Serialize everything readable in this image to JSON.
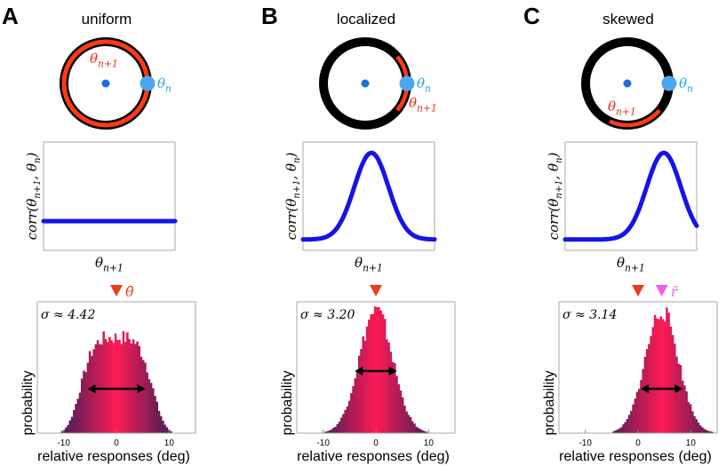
{
  "panels": [
    {
      "letter": "A",
      "title": "uniform",
      "label_current": "θ",
      "label_current_sub": "n",
      "label_next": "θ",
      "label_next_sub": "n+1",
      "ring_arc": "full",
      "corr_shape": "flat",
      "ylabel": "corr(θ",
      "ylabel_sub1": "n+1",
      "ylabel_mid": ", θ",
      "ylabel_sub2": "n",
      "ylabel_end": ")",
      "xlabel": "θ",
      "xlabel_sub": "n+1",
      "sigma_text": "σ ≈ 4.42",
      "markers": [
        {
          "kind": "triangle",
          "color": "#f03a1e",
          "x": 0
        },
        {
          "kind": "label",
          "text": "θ̄",
          "color": "#f03a1e"
        }
      ],
      "hist_center": 0,
      "hist_sigma": 4.42,
      "hist_shape": "flat",
      "arrow_range": [
        -5.5,
        5.5
      ],
      "x_ticks": [
        "-10",
        "0",
        "10"
      ],
      "x_tick_values": [
        -10,
        0,
        10
      ],
      "hist_ylabel": "probability",
      "hist_xlabel": "relative responses (deg)"
    },
    {
      "letter": "B",
      "title": "localized",
      "label_current": "θ",
      "label_current_sub": "n",
      "label_next": "θ",
      "label_next_sub": "n+1",
      "ring_arc": "local",
      "corr_shape": "peak",
      "ylabel": "corr(θ",
      "ylabel_sub1": "n+1",
      "ylabel_mid": ", θ",
      "ylabel_sub2": "n",
      "ylabel_end": ")",
      "xlabel": "θ",
      "xlabel_sub": "n+1",
      "sigma_text": "σ ≈ 3.20",
      "markers": [
        {
          "kind": "triangle",
          "color": "#f03a1e",
          "x": 0
        }
      ],
      "hist_center": 0,
      "hist_sigma": 3.2,
      "hist_shape": "gauss",
      "arrow_range": [
        -4,
        4
      ],
      "x_ticks": [
        "-10",
        "0",
        "10"
      ],
      "x_tick_values": [
        -10,
        0,
        10
      ],
      "hist_ylabel": "probability",
      "hist_xlabel": "relative responses (deg)"
    },
    {
      "letter": "C",
      "title": "skewed",
      "label_current": "θ",
      "label_current_sub": "n",
      "label_next": "θ",
      "label_next_sub": "n+1",
      "ring_arc": "skewed",
      "corr_shape": "peak-shifted",
      "ylabel": "corr(θ",
      "ylabel_sub1": "n+1",
      "ylabel_mid": ", θ",
      "ylabel_sub2": "n",
      "ylabel_end": ")",
      "xlabel": "θ",
      "xlabel_sub": "n+1",
      "sigma_text": "σ ≈ 3.14",
      "markers": [
        {
          "kind": "triangle",
          "color": "#f03a1e",
          "x": 0
        },
        {
          "kind": "triangle",
          "color": "#f25ef0",
          "x": 4.5
        },
        {
          "kind": "label",
          "text": "r̄",
          "color": "#f25ef0"
        }
      ],
      "hist_center": 4.5,
      "hist_sigma": 3.14,
      "hist_shape": "gauss",
      "arrow_range": [
        0.5,
        8.5
      ],
      "x_ticks": [
        "-10",
        "0",
        "10"
      ],
      "x_tick_values": [
        -10,
        0,
        10
      ],
      "hist_ylabel": "probability",
      "hist_xlabel": "relative responses (deg)"
    }
  ],
  "colors": {
    "ring": "#000000",
    "arc": "#ff3a14",
    "dot_center": "#1a6fd6",
    "dot_current": "#4aa8f0",
    "label_current": "#29a3e0",
    "label_next": "#ee2a1a",
    "curve": "#1414e6",
    "hist_low": "#5a1e56",
    "hist_high": "#ff1a55"
  }
}
